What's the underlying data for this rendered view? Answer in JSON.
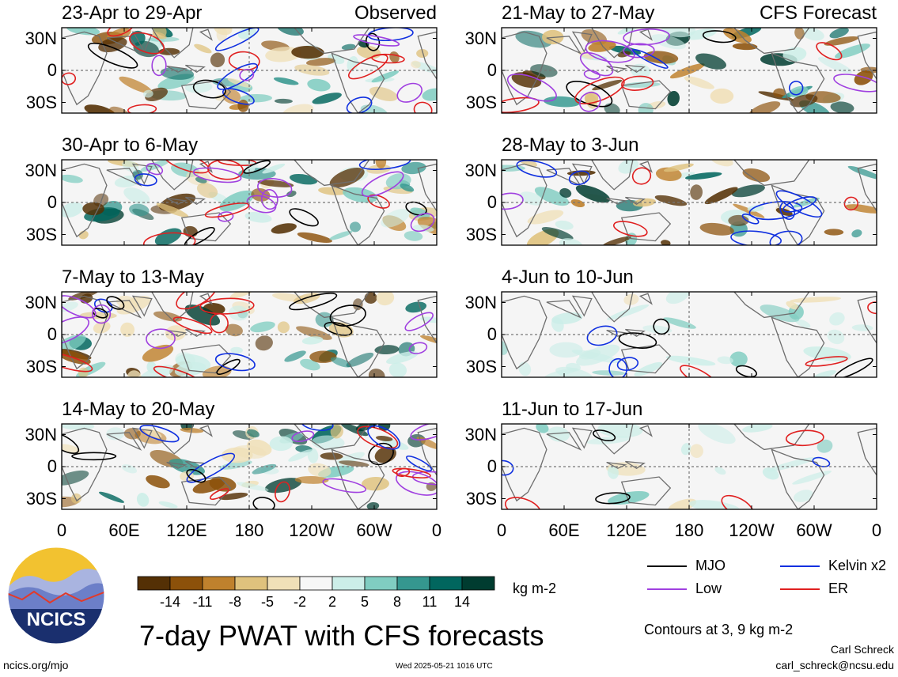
{
  "panels": [
    {
      "title": "23-Apr to 29-Apr",
      "tag": "Observed"
    },
    {
      "title": "30-Apr to 6-May",
      "tag": ""
    },
    {
      "title": "7-May to 13-May",
      "tag": ""
    },
    {
      "title": "14-May to 20-May",
      "tag": ""
    },
    {
      "title": "21-May to 27-May",
      "tag": "CFS Forecast"
    },
    {
      "title": "28-May to 3-Jun",
      "tag": ""
    },
    {
      "title": "4-Jun to 10-Jun",
      "tag": ""
    },
    {
      "title": "11-Jun to 17-Jun",
      "tag": ""
    }
  ],
  "lat_ticks": [
    "30N",
    "0",
    "30S"
  ],
  "lon_ticks": [
    "0",
    "60E",
    "120E",
    "180",
    "120W",
    "60W",
    "0"
  ],
  "colorbar": {
    "labels": [
      "-14",
      "-11",
      "-8",
      "-5",
      "-2",
      "2",
      "5",
      "8",
      "11",
      "14"
    ],
    "colors": [
      "#543005",
      "#8c510a",
      "#bf812d",
      "#dfc27d",
      "#f0e0b8",
      "#f7f7f7",
      "#cceee8",
      "#80cdc1",
      "#35978f",
      "#01665e",
      "#003c30"
    ],
    "units": "kg m-2"
  },
  "legend": [
    {
      "label": "MJO",
      "color": "#000000"
    },
    {
      "label": "Kelvin x2",
      "color": "#1030e0"
    },
    {
      "label": "Low",
      "color": "#a040e0"
    },
    {
      "label": "ER",
      "color": "#e02020"
    }
  ],
  "main_title": "7-day PWAT with CFS forecasts",
  "contours_note": "Contours at 3, 9 kg m-2",
  "author": "Carl Schreck",
  "email": "carl_schreck@ncsu.edu",
  "site": "ncics.org/mjo",
  "timestamp": "Wed 2025-05-21 1016 UTC",
  "logo_text": "NCICS"
}
